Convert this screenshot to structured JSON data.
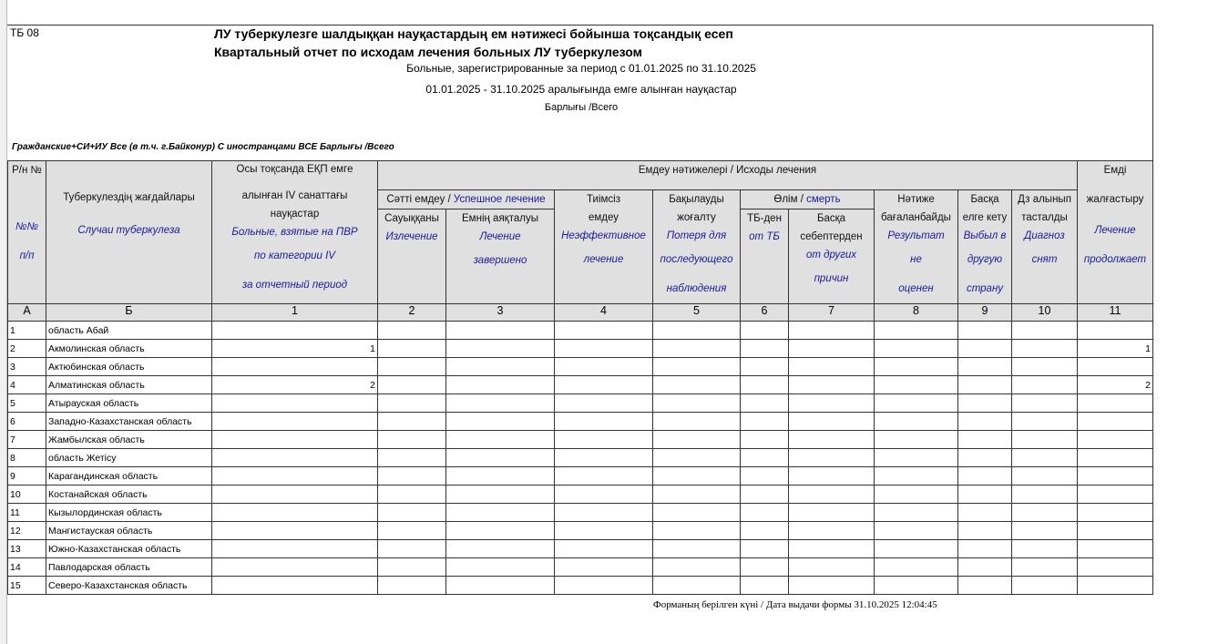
{
  "form_code": "ТБ 08",
  "title_kz": "ЛУ туберкулезге шалдыққан науқастардың ем нәтижесі бойынша тоқсандық есеп",
  "title_ru": "Квартальный отчет по исходам лечения больных ЛУ туберкулезом",
  "subtitle_period_ru": "Больные, зарегистрированные за период с 01.01.2025 по 31.10.2025",
  "subtitle_period_kz": "01.01.2025 - 31.10.2025 аралығында емге алынған науқастар",
  "subtitle_total": "Барлығы /Всего",
  "filter_line": "Гражданские+СИ+ИУ  Все (в т.ч. г.Байконур)  С иностранцами ВСЕ  Барлығы /Всего",
  "headers": {
    "num_kz": "Р/н №",
    "num_ru1": "№№",
    "num_ru2": "п/п",
    "case_kz": "Туберкулездің жағдайлары",
    "case_ru": "Случаи туберкулеза",
    "c1_kz1": "Осы тоқсанда ЕҚП емге",
    "c1_kz2": "алынған IV санаттағы",
    "c1_kz3": "науқастар",
    "c1_ru1": "Больные, взятые на ПВР",
    "c1_ru2": "по категории IV",
    "c1_ru3": "за отчетный период",
    "outcomes": "Емдеу нәтижелері / Исходы лечения",
    "success_kz": "Сәтті емдеу /",
    "success_ru": " Успешное лечение",
    "c2_kz": "Сауыққаны",
    "c2_ru": "Излечение",
    "c3_kz": "Емнің аяқталуы",
    "c3_ru1": "Лечение",
    "c3_ru2": "завершено",
    "c4_kz1": "Тиімсіз",
    "c4_kz2": "емдеу",
    "c4_ru1": "Неэффективное",
    "c4_ru2": "лечение",
    "c5_kz1": "Бақылауды",
    "c5_kz2": "жоғалту",
    "c5_ru1": "Потеря для",
    "c5_ru2": "последующего",
    "c5_ru3": "наблюдения",
    "death_kz": "Өлім /",
    "death_ru": " смерть",
    "c6_kz": "ТБ-ден",
    "c6_ru": "от ТБ",
    "c7_kz1": "Басқа",
    "c7_kz2": "себептерден",
    "c7_ru1": "от других",
    "c7_ru2": "причин",
    "c8_kz1": "Нәтиже",
    "c8_kz2": "бағаланбайды",
    "c8_ru1": "Результат",
    "c8_ru2": "не",
    "c8_ru3": "оценен",
    "c9_kz1": "Басқа",
    "c9_kz2": "елге кету",
    "c9_ru1": "Выбыл в",
    "c9_ru2": "другую",
    "c9_ru3": "страну",
    "c10_kz1": "Дз алынып",
    "c10_kz2": "тасталды",
    "c10_ru1": "Диагноз",
    "c10_ru2": "снят",
    "c11_kz1": "Емді",
    "c11_kz2": "жалғастыру",
    "c11_ru1": "Лечение",
    "c11_ru2": "продолжает"
  },
  "letters": [
    "А",
    "Б",
    "1",
    "2",
    "3",
    "4",
    "5",
    "6",
    "7",
    "8",
    "9",
    "10",
    "11"
  ],
  "rows": [
    {
      "n": "1",
      "name": "область Абай",
      "c1": "",
      "c11": ""
    },
    {
      "n": "2",
      "name": "Акмолинская область",
      "c1": "1",
      "c11": "1"
    },
    {
      "n": "3",
      "name": "Актюбинская область",
      "c1": "",
      "c11": ""
    },
    {
      "n": "4",
      "name": "Алматинская область",
      "c1": "2",
      "c11": "2"
    },
    {
      "n": "5",
      "name": "Атырауская область",
      "c1": "",
      "c11": ""
    },
    {
      "n": "6",
      "name": "Западно-Казахстанская область",
      "c1": "",
      "c11": ""
    },
    {
      "n": "7",
      "name": "Жамбылская область",
      "c1": "",
      "c11": ""
    },
    {
      "n": "8",
      "name": "область Жетісу",
      "c1": "",
      "c11": ""
    },
    {
      "n": "9",
      "name": "Карагандинская область",
      "c1": "",
      "c11": ""
    },
    {
      "n": "10",
      "name": "Костанайская область",
      "c1": "",
      "c11": ""
    },
    {
      "n": "11",
      "name": "Кызылординская область",
      "c1": "",
      "c11": ""
    },
    {
      "n": "12",
      "name": "Мангистауская область",
      "c1": "",
      "c11": ""
    },
    {
      "n": "13",
      "name": "Южно-Казахстанская область",
      "c1": "",
      "c11": ""
    },
    {
      "n": "14",
      "name": "Павлодарская область",
      "c1": "",
      "c11": ""
    },
    {
      "n": "15",
      "name": "Северо-Казахстанская область",
      "c1": "",
      "c11": ""
    }
  ],
  "footer": "Форманың берілген күні / Дата выдачи формы  31.10.2025 12:04:45"
}
